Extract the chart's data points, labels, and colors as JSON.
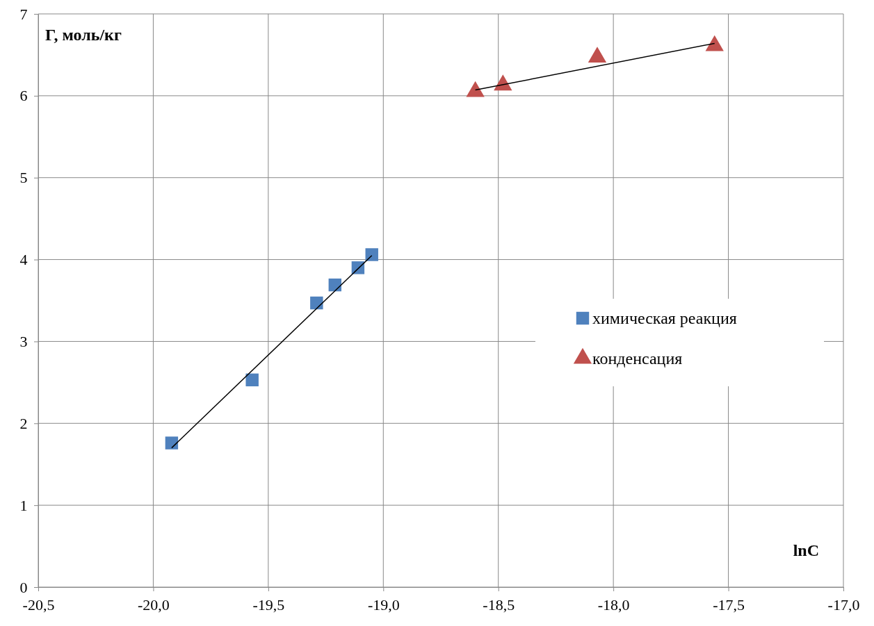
{
  "chart_data": {
    "type": "scatter",
    "xlabel": "lnC",
    "ylabel": "Г, моль/кг",
    "xlim": [
      -20.5,
      -17.0
    ],
    "ylim": [
      0,
      7
    ],
    "xticks": [
      {
        "value": -20.5,
        "label": "-20,5"
      },
      {
        "value": -20,
        "label": "-20,0"
      },
      {
        "value": -19.5,
        "label": "-19,5"
      },
      {
        "value": -19,
        "label": "-19,0"
      },
      {
        "value": -18.5,
        "label": "-18,5"
      },
      {
        "value": -18,
        "label": "-18,0"
      },
      {
        "value": -17.5,
        "label": "-17,5"
      },
      {
        "value": -17,
        "label": "-17,0"
      }
    ],
    "yticks": [
      0,
      1,
      2,
      3,
      4,
      5,
      6,
      7
    ],
    "grid": true,
    "legend": "right",
    "series": [
      {
        "name": "химическая реакция",
        "marker": "square",
        "color": "#4f81bd",
        "x": [
          -19.92,
          -19.57,
          -19.29,
          -19.21,
          -19.11,
          -19.05
        ],
        "values": [
          1.76,
          2.53,
          3.47,
          3.69,
          3.9,
          4.06
        ]
      },
      {
        "name": "конденсация",
        "marker": "triangle",
        "color": "#c0504d",
        "x": [
          -18.6,
          -18.48,
          -18.07,
          -17.56
        ],
        "values": [
          6.05,
          6.13,
          6.47,
          6.61
        ]
      },
      {
        "type": "line",
        "marker": "none",
        "color": "#000000",
        "x": [
          -19.92,
          -19.05
        ],
        "values": [
          1.7,
          4.05
        ]
      },
      {
        "type": "line",
        "marker": "none",
        "color": "#000000",
        "x": [
          -18.6,
          -17.56
        ],
        "values": [
          6.07,
          6.64
        ]
      }
    ]
  }
}
